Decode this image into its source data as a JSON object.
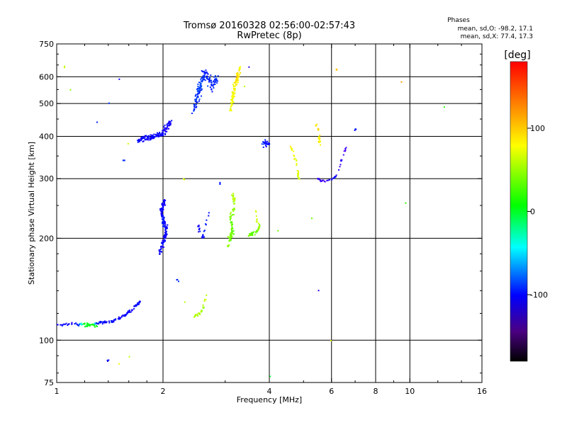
{
  "chart_data": {
    "type": "scatter",
    "title": "Tromsø 20160328 02:56:00-02:57:43",
    "subtitle": "RwPretec (8p)",
    "xlabel": "Frequency [MHz]",
    "ylabel": "Stationary phase Virtual Height [km]",
    "x_scale": "log",
    "y_scale": "log",
    "xlim": [
      1,
      16
    ],
    "ylim": [
      75,
      750
    ],
    "x_ticks": [
      1,
      2,
      4,
      6,
      8,
      10,
      16
    ],
    "x_tick_labels": [
      "1",
      "2",
      "4",
      "6",
      "8",
      "10",
      "16"
    ],
    "y_ticks": [
      75,
      100,
      200,
      300,
      400,
      500,
      600,
      750
    ],
    "y_tick_labels": [
      "75",
      "100",
      "200",
      "300",
      "400",
      "500",
      "600",
      "750"
    ],
    "x_gridlines": [
      2,
      4,
      6,
      8,
      10
    ],
    "y_gridlines": [
      100,
      200,
      300,
      400,
      500,
      600
    ],
    "grid": true,
    "stats": {
      "heading": "Phases",
      "line_o": "mean, sd,O: -98.2, 17.1",
      "line_x": "mean, sd,X:  77.4, 17.3"
    },
    "colorbar": {
      "label": "[deg]",
      "range": [
        -180,
        180
      ],
      "ticks": [
        100,
        0,
        -100
      ],
      "tick_labels": [
        "100",
        "0",
        "-100"
      ]
    },
    "clusters": [
      {
        "name": "lower-E-trace",
        "pts": [
          [
            1.0,
            112,
            -110
          ],
          [
            1.05,
            111,
            -108
          ],
          [
            1.1,
            112,
            -112
          ],
          [
            1.15,
            111,
            -105
          ],
          [
            1.2,
            112,
            40
          ],
          [
            1.25,
            111,
            30
          ],
          [
            1.3,
            112,
            -100
          ],
          [
            1.35,
            113,
            -110
          ],
          [
            1.4,
            113,
            -105
          ],
          [
            1.45,
            114,
            -108
          ],
          [
            1.5,
            116,
            -110
          ],
          [
            1.55,
            118,
            -112
          ],
          [
            1.6,
            121,
            -108
          ],
          [
            1.65,
            124,
            -110
          ],
          [
            1.7,
            128,
            -105
          ],
          [
            1.72,
            130,
            -108
          ]
        ],
        "n": 150,
        "dx": 0.01,
        "dy": 0.012
      },
      {
        "name": "E-cluster-green",
        "pts": [
          [
            1.2,
            110,
            20
          ],
          [
            1.25,
            111,
            40
          ],
          [
            1.3,
            110,
            30
          ]
        ],
        "n": 20,
        "dx": 0.012,
        "dy": 0.01
      },
      {
        "name": "Es-2MHz-lower",
        "pts": [
          [
            1.95,
            180,
            -110
          ],
          [
            2.0,
            195,
            -110
          ],
          [
            2.05,
            210,
            -110
          ],
          [
            2.0,
            225,
            -105
          ],
          [
            1.98,
            240,
            -110
          ],
          [
            2.02,
            260,
            -112
          ]
        ],
        "n": 160,
        "dx": 0.012,
        "dy": 0.045
      },
      {
        "name": "F-2MHz-upper",
        "pts": [
          [
            1.7,
            390,
            -110
          ],
          [
            1.8,
            395,
            -108
          ],
          [
            1.9,
            400,
            -110
          ],
          [
            2.0,
            410,
            -112
          ],
          [
            2.1,
            440,
            -110
          ]
        ],
        "n": 140,
        "dx": 0.02,
        "dy": 0.025
      },
      {
        "name": "F2-2.5MHz-upper",
        "pts": [
          [
            2.45,
            480,
            -100
          ],
          [
            2.5,
            520,
            -95
          ],
          [
            2.55,
            560,
            -90
          ],
          [
            2.6,
            600,
            -95
          ],
          [
            2.65,
            620,
            -100
          ],
          [
            2.75,
            560,
            -100
          ],
          [
            2.85,
            600,
            -95
          ]
        ],
        "n": 150,
        "dx": 0.02,
        "dy": 0.05
      },
      {
        "name": "F2-3.1MHz-upper",
        "pts": [
          [
            3.1,
            470,
            100
          ],
          [
            3.15,
            520,
            110
          ],
          [
            3.2,
            560,
            110
          ],
          [
            3.25,
            600,
            120
          ],
          [
            3.3,
            630,
            110
          ],
          [
            3.1,
            500,
            95
          ]
        ],
        "n": 100,
        "dx": 0.014,
        "dy": 0.05
      },
      {
        "name": "F-3.1MHz-lower",
        "pts": [
          [
            3.05,
            190,
            80
          ],
          [
            3.1,
            200,
            70
          ],
          [
            3.15,
            210,
            60
          ],
          [
            3.1,
            230,
            70
          ],
          [
            3.2,
            250,
            80
          ],
          [
            3.15,
            270,
            90
          ]
        ],
        "n": 90,
        "dx": 0.012,
        "dy": 0.045
      },
      {
        "name": "F-3.6MHz",
        "pts": [
          [
            3.5,
            205,
            70
          ],
          [
            3.6,
            207,
            60
          ],
          [
            3.7,
            210,
            70
          ],
          [
            3.75,
            215,
            80
          ],
          [
            3.7,
            225,
            90
          ],
          [
            3.65,
            240,
            100
          ]
        ],
        "n": 45,
        "dx": 0.01,
        "dy": 0.02
      },
      {
        "name": "F-4MHz-blue",
        "pts": [
          [
            3.8,
            380,
            -100
          ],
          [
            3.9,
            385,
            -105
          ],
          [
            4.0,
            380,
            -110
          ],
          [
            3.85,
            370,
            -100
          ]
        ],
        "n": 25,
        "dx": 0.01,
        "dy": 0.02
      },
      {
        "name": "F-4.8MHz",
        "pts": [
          [
            4.6,
            370,
            110
          ],
          [
            4.7,
            350,
            105
          ],
          [
            4.8,
            320,
            100
          ],
          [
            4.85,
            300,
            95
          ]
        ],
        "n": 30,
        "dx": 0.01,
        "dy": 0.03
      },
      {
        "name": "F-5.5MHz",
        "pts": [
          [
            5.4,
            440,
            120
          ],
          [
            5.5,
            420,
            115
          ],
          [
            5.55,
            390,
            110
          ],
          [
            5.6,
            370,
            105
          ]
        ],
        "n": 22,
        "dx": 0.008,
        "dy": 0.02
      },
      {
        "name": "F-6MHz-trace",
        "pts": [
          [
            5.5,
            300,
            -120
          ],
          [
            5.6,
            296,
            -125
          ],
          [
            5.8,
            295,
            -120
          ],
          [
            6.0,
            298,
            -115
          ],
          [
            6.2,
            305,
            -110
          ],
          [
            6.3,
            320,
            -115
          ],
          [
            6.4,
            340,
            -125
          ],
          [
            6.5,
            355,
            -130
          ],
          [
            6.6,
            370,
            -120
          ]
        ],
        "n": 40,
        "dx": 0.005,
        "dy": 0.01
      },
      {
        "name": "F-2.7MHz-blue",
        "pts": [
          [
            2.5,
            220,
            -110
          ],
          [
            2.6,
            200,
            -110
          ],
          [
            2.7,
            240,
            -105
          ]
        ],
        "n": 25,
        "dx": 0.015,
        "dy": 0.03
      },
      {
        "name": "E-2.5MHz-yellow",
        "pts": [
          [
            2.45,
            118,
            85
          ],
          [
            2.55,
            120,
            90
          ],
          [
            2.6,
            125,
            80
          ],
          [
            2.65,
            135,
            90
          ]
        ],
        "n": 25,
        "dx": 0.01,
        "dy": 0.02
      },
      {
        "name": "scattered",
        "pts": [
          [
            1.05,
            640,
            90
          ],
          [
            1.1,
            550,
            80
          ],
          [
            1.35,
            610,
            -100
          ],
          [
            1.4,
            500,
            -95
          ],
          [
            1.3,
            440,
            -100
          ],
          [
            1.25,
            270,
            -110
          ],
          [
            1.5,
            590,
            -110
          ],
          [
            1.55,
            340,
            -100
          ],
          [
            1.6,
            380,
            90
          ],
          [
            1.7,
            250,
            -110
          ],
          [
            2.3,
            300,
            90
          ],
          [
            2.9,
            290,
            -105
          ],
          [
            3.5,
            640,
            -120
          ],
          [
            3.4,
            560,
            95
          ],
          [
            4.5,
            550,
            -120
          ],
          [
            5.0,
            650,
            130
          ],
          [
            5.2,
            690,
            140
          ],
          [
            5.3,
            230,
            70
          ],
          [
            5.5,
            140,
            -120
          ],
          [
            6.0,
            100,
            100
          ],
          [
            6.2,
            630,
            120
          ],
          [
            7.0,
            420,
            -100
          ],
          [
            9.5,
            580,
            130
          ],
          [
            12.5,
            490,
            40
          ],
          [
            9.7,
            255,
            60
          ],
          [
            4.2,
            210,
            70
          ],
          [
            3.8,
            140,
            -120
          ],
          [
            3.9,
            105,
            -90
          ],
          [
            4.0,
            78,
            20
          ],
          [
            1.5,
            85,
            110
          ],
          [
            1.4,
            87,
            -110
          ],
          [
            1.6,
            89,
            90
          ],
          [
            2.3,
            130,
            90
          ],
          [
            2.2,
            150,
            -100
          ],
          [
            5.4,
            108,
            140
          ]
        ],
        "n": 40,
        "dx": 0.01,
        "dy": 0.01
      }
    ]
  }
}
